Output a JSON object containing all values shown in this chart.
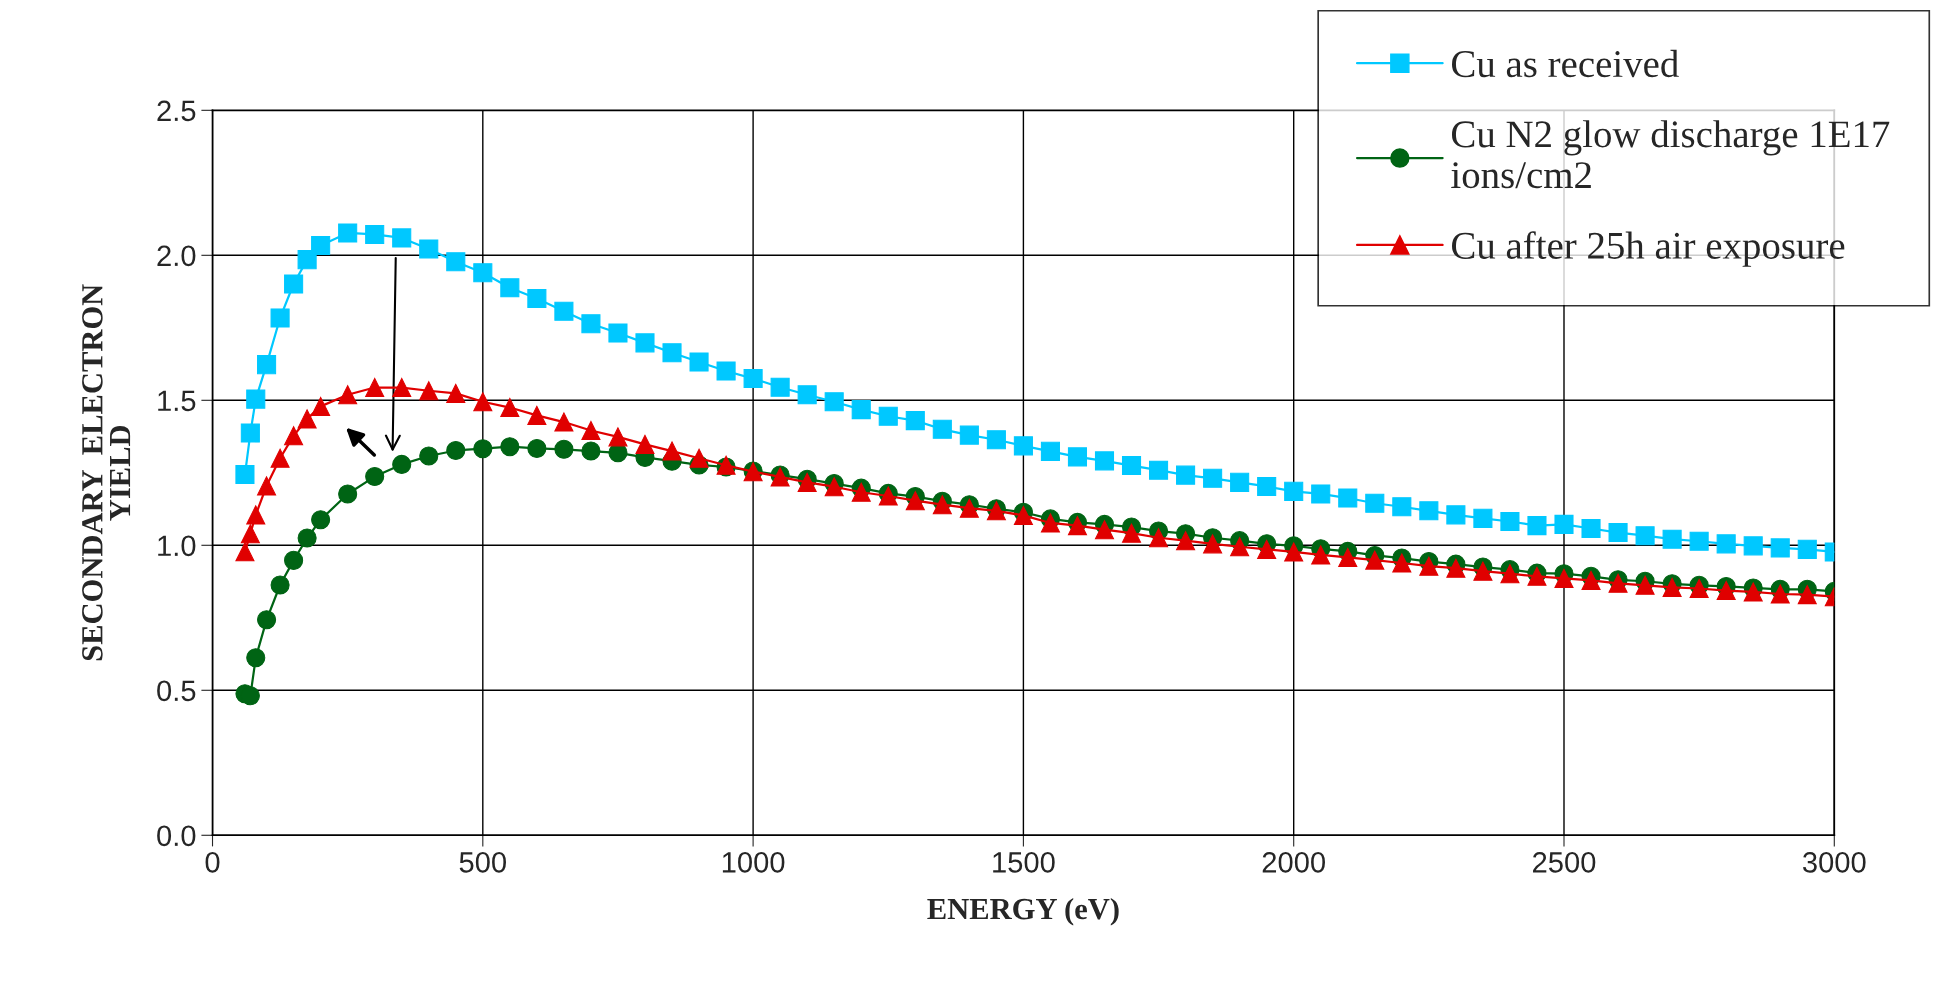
{
  "chart_data": {
    "type": "line",
    "xlabel": "ENERGY (eV)",
    "ylabel": "SECONDARY  ELECTRON\nYIELD",
    "x": [
      60,
      70,
      80,
      100,
      125,
      150,
      175,
      200,
      250,
      300,
      350,
      400,
      450,
      500,
      550,
      600,
      650,
      700,
      750,
      800,
      850,
      900,
      950,
      1000,
      1050,
      1100,
      1150,
      1200,
      1250,
      1300,
      1350,
      1400,
      1450,
      1500,
      1550,
      1600,
      1650,
      1700,
      1750,
      1800,
      1850,
      1900,
      1950,
      2000,
      2050,
      2100,
      2150,
      2200,
      2250,
      2300,
      2350,
      2400,
      2450,
      2500,
      2550,
      2600,
      2650,
      2700,
      2750,
      2800,
      2850,
      2900,
      2950,
      3000
    ],
    "series": [
      {
        "name": "Cu as received",
        "color": "#00c8ff",
        "marker": "square",
        "values": [
          1.244,
          1.387,
          1.504,
          1.623,
          1.784,
          1.901,
          1.985,
          2.034,
          2.077,
          2.072,
          2.06,
          2.022,
          1.978,
          1.94,
          1.888,
          1.851,
          1.807,
          1.764,
          1.732,
          1.698,
          1.664,
          1.632,
          1.601,
          1.575,
          1.545,
          1.519,
          1.495,
          1.468,
          1.445,
          1.43,
          1.4,
          1.38,
          1.364,
          1.343,
          1.324,
          1.305,
          1.291,
          1.275,
          1.259,
          1.242,
          1.231,
          1.217,
          1.203,
          1.186,
          1.177,
          1.163,
          1.145,
          1.133,
          1.119,
          1.105,
          1.093,
          1.082,
          1.068,
          1.072,
          1.058,
          1.044,
          1.033,
          1.021,
          1.014,
          1.005,
          0.998,
          0.991,
          0.986,
          0.977
        ]
      },
      {
        "name": "Cu N2 glow discharge 1E17\nions/cm2",
        "color": "#006414",
        "marker": "circle",
        "values": [
          0.488,
          0.481,
          0.612,
          0.743,
          0.863,
          0.948,
          1.025,
          1.088,
          1.177,
          1.237,
          1.279,
          1.308,
          1.327,
          1.333,
          1.34,
          1.334,
          1.331,
          1.325,
          1.319,
          1.303,
          1.29,
          1.277,
          1.27,
          1.256,
          1.242,
          1.228,
          1.213,
          1.197,
          1.179,
          1.168,
          1.152,
          1.14,
          1.126,
          1.114,
          1.091,
          1.079,
          1.072,
          1.063,
          1.049,
          1.04,
          1.026,
          1.016,
          1.005,
          0.998,
          0.988,
          0.979,
          0.965,
          0.956,
          0.944,
          0.935,
          0.925,
          0.916,
          0.904,
          0.902,
          0.893,
          0.881,
          0.876,
          0.867,
          0.862,
          0.858,
          0.853,
          0.848,
          0.848,
          0.841
        ]
      },
      {
        "name": "Cu after 25h air exposure",
        "color": "#e00000",
        "marker": "triangle",
        "values": [
          0.978,
          1.04,
          1.105,
          1.205,
          1.3,
          1.378,
          1.436,
          1.479,
          1.519,
          1.544,
          1.544,
          1.533,
          1.524,
          1.495,
          1.475,
          1.448,
          1.425,
          1.396,
          1.374,
          1.348,
          1.325,
          1.3,
          1.276,
          1.254,
          1.236,
          1.217,
          1.202,
          1.183,
          1.17,
          1.154,
          1.14,
          1.128,
          1.119,
          1.103,
          1.077,
          1.068,
          1.054,
          1.042,
          1.026,
          1.016,
          1.005,
          0.995,
          0.986,
          0.977,
          0.967,
          0.958,
          0.949,
          0.939,
          0.928,
          0.921,
          0.911,
          0.902,
          0.893,
          0.886,
          0.879,
          0.869,
          0.862,
          0.855,
          0.851,
          0.844,
          0.839,
          0.832,
          0.83,
          0.823
        ]
      }
    ],
    "xlim": [
      0,
      3000
    ],
    "xticks": [
      0,
      500,
      1000,
      1500,
      2000,
      2500,
      3000
    ],
    "ylim": [
      0,
      2.5
    ],
    "yticks": [
      {
        "value": 0,
        "label": "0.0"
      },
      {
        "value": 0.5,
        "label": "0.5"
      },
      {
        "value": 1,
        "label": "1.0"
      },
      {
        "value": 1.5,
        "label": "1.5"
      },
      {
        "value": 2,
        "label": "2.0"
      },
      {
        "value": 2.5,
        "label": "2.5"
      }
    ],
    "grid": true,
    "legend": "top right",
    "line_style": "solid"
  }
}
